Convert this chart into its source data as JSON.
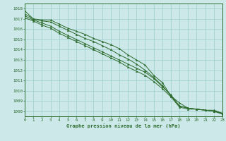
{
  "title": "Graphe pression niveau de la mer (hPa)",
  "background_color": "#cce8e8",
  "grid_color": "#99cccc",
  "line_color": "#2d6b2d",
  "marker_color": "#2d6b2d",
  "xlim": [
    0,
    23
  ],
  "ylim": [
    1007.5,
    1018.5
  ],
  "xticks": [
    0,
    1,
    2,
    3,
    4,
    5,
    6,
    7,
    8,
    9,
    10,
    11,
    12,
    13,
    14,
    15,
    16,
    17,
    18,
    19,
    20,
    21,
    22,
    23
  ],
  "yticks": [
    1008,
    1009,
    1010,
    1011,
    1012,
    1013,
    1014,
    1015,
    1016,
    1017,
    1018
  ],
  "series": [
    [
      1017.8,
      1017.0,
      1016.9,
      1016.9,
      1016.5,
      1016.1,
      1015.8,
      1015.5,
      1015.1,
      1014.8,
      1014.5,
      1014.1,
      1013.5,
      1013.0,
      1012.5,
      1011.5,
      1010.8,
      1009.5,
      1008.8,
      1008.3,
      1008.2,
      1008.1,
      1008.0,
      1007.8
    ],
    [
      1017.5,
      1017.0,
      1016.8,
      1016.7,
      1016.3,
      1015.9,
      1015.5,
      1015.1,
      1014.8,
      1014.4,
      1014.0,
      1013.5,
      1013.1,
      1012.6,
      1012.0,
      1011.3,
      1010.5,
      1009.5,
      1008.5,
      1008.3,
      1008.2,
      1008.1,
      1008.1,
      1007.8
    ],
    [
      1017.3,
      1016.9,
      1016.6,
      1016.3,
      1015.8,
      1015.4,
      1015.0,
      1014.6,
      1014.2,
      1013.8,
      1013.4,
      1013.0,
      1012.6,
      1012.2,
      1011.8,
      1011.2,
      1010.4,
      1009.6,
      1008.5,
      1008.3,
      1008.2,
      1008.1,
      1008.0,
      1007.8
    ],
    [
      1017.1,
      1016.8,
      1016.4,
      1016.1,
      1015.6,
      1015.2,
      1014.8,
      1014.4,
      1014.0,
      1013.6,
      1013.2,
      1012.8,
      1012.3,
      1011.9,
      1011.5,
      1010.9,
      1010.2,
      1009.4,
      1008.4,
      1008.2,
      1008.2,
      1008.1,
      1008.0,
      1007.7
    ]
  ]
}
